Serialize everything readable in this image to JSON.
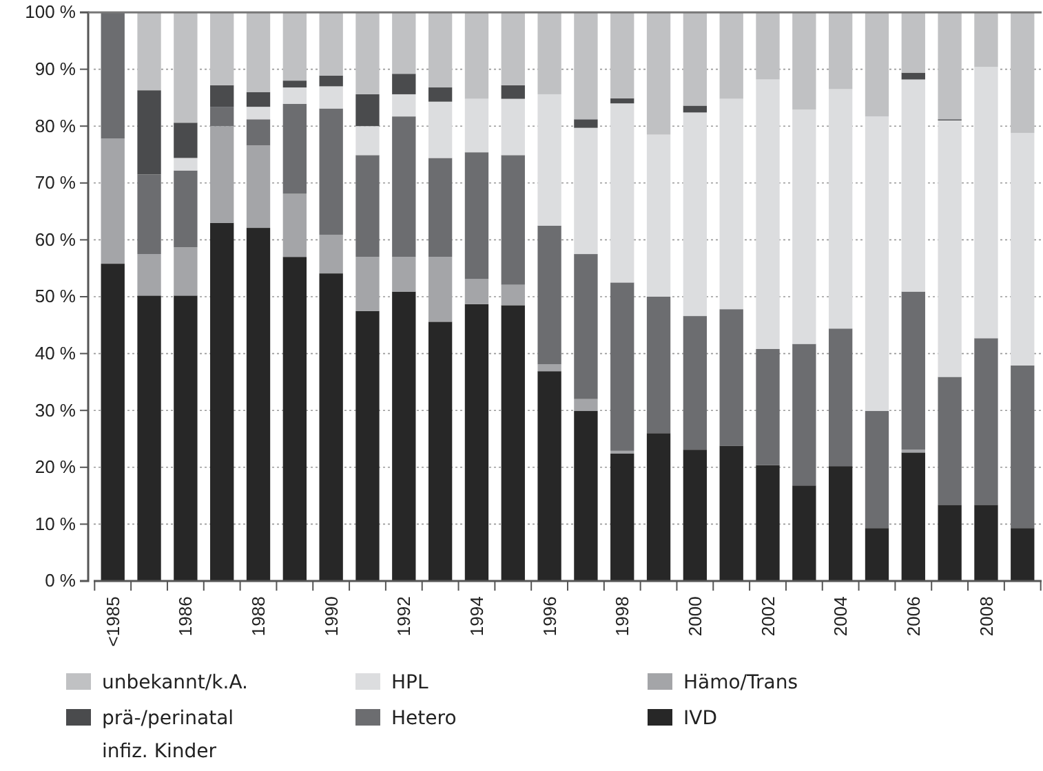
{
  "chart_data": {
    "type": "bar",
    "stacked": true,
    "grid": "y",
    "legend": "bottom",
    "categories": [
      "<1985",
      null,
      "1986",
      null,
      "1988",
      null,
      "1990",
      null,
      "1992",
      null,
      "1994",
      null,
      "1996",
      null,
      "1998",
      null,
      "2000",
      null,
      "2002",
      null,
      "2004",
      null,
      "2006",
      null,
      "2008",
      null
    ],
    "ylim": [
      0,
      100
    ],
    "yticks": [
      {
        "value": 0,
        "label": "0 %"
      },
      {
        "value": 10,
        "label": "10 %"
      },
      {
        "value": 20,
        "label": "20 %"
      },
      {
        "value": 30,
        "label": "30 %"
      },
      {
        "value": 40,
        "label": "40 %"
      },
      {
        "value": 50,
        "label": "50 %"
      },
      {
        "value": 60,
        "label": "60 %"
      },
      {
        "value": 70,
        "label": "70 %"
      },
      {
        "value": 80,
        "label": "80 %"
      },
      {
        "value": 90,
        "label": "90 %"
      },
      {
        "value": 100,
        "label": "100 %"
      }
    ],
    "series": [
      {
        "name": "IVD",
        "color": "#272727",
        "values": [
          55.8,
          50.2,
          50.2,
          63.0,
          62.1,
          57.0,
          54.1,
          47.5,
          50.9,
          45.6,
          48.7,
          48.5,
          36.9,
          29.9,
          22.4,
          26.0,
          23.1,
          23.8,
          20.4,
          16.8,
          20.2,
          9.3,
          22.6,
          13.4,
          13.4,
          9.3
        ]
      },
      {
        "name": "Hämo/Trans",
        "color": "#a4a5a8",
        "values": [
          22.0,
          7.3,
          8.5,
          17.0,
          14.5,
          11.1,
          6.8,
          9.5,
          6.1,
          11.4,
          4.4,
          3.6,
          1.2,
          2.1,
          0.5,
          0,
          0,
          0,
          0,
          0,
          0,
          0,
          0.5,
          0,
          0,
          0
        ]
      },
      {
        "name": "Hetero",
        "color": "#6c6d70",
        "values": [
          22.2,
          14.0,
          13.5,
          3.4,
          4.6,
          15.8,
          22.2,
          17.9,
          24.7,
          17.4,
          22.3,
          22.8,
          24.4,
          25.5,
          29.6,
          24.0,
          23.5,
          24.0,
          20.4,
          24.9,
          24.2,
          20.6,
          27.8,
          22.5,
          29.3,
          28.6
        ]
      },
      {
        "name": "HPL",
        "color": "#dcdddf",
        "values": [
          0,
          0,
          2.2,
          0,
          2.2,
          2.9,
          3.9,
          5.1,
          3.9,
          9.9,
          9.4,
          9.9,
          23.1,
          22.2,
          31.5,
          28.5,
          35.8,
          37.0,
          47.4,
          41.2,
          42.1,
          51.8,
          37.3,
          45.1,
          47.7,
          40.9
        ]
      },
      {
        "name": "prä-/perinatal infiz. Kinder",
        "color": "#4a4b4d",
        "values": [
          0,
          14.8,
          6.2,
          3.8,
          2.6,
          1.2,
          1.9,
          5.6,
          3.6,
          2.5,
          0,
          2.4,
          0,
          1.5,
          0.9,
          0,
          1.2,
          0,
          0,
          0,
          0,
          0,
          1.2,
          0.2,
          0,
          0
        ]
      },
      {
        "name": "unbekannt/k.A.",
        "color": "#c0c1c3",
        "values": [
          0,
          13.7,
          19.4,
          12.8,
          14.0,
          12.0,
          11.1,
          14.4,
          10.8,
          13.2,
          15.2,
          12.8,
          14.4,
          18.8,
          15.2,
          21.5,
          16.4,
          15.2,
          11.8,
          17.1,
          13.5,
          18.3,
          10.6,
          18.8,
          9.6,
          21.2
        ]
      }
    ]
  }
}
